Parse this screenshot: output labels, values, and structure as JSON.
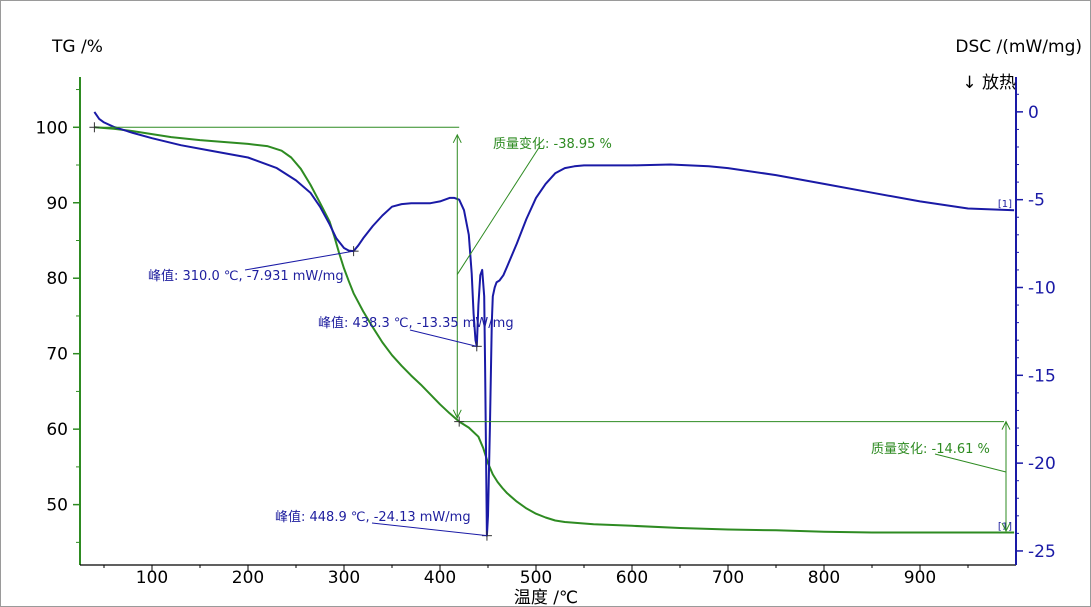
{
  "chart_data": {
    "type": "line",
    "title": "",
    "xlabel": "温度 /℃",
    "ylabel_left": "TG /%",
    "ylabel_right": "DSC /(mW/mg)",
    "exo_label": "↓ 放热",
    "xlim": [
      25,
      1000
    ],
    "ylim_left": [
      42,
      106
    ],
    "ylim_right": [
      -25.8,
      1.7
    ],
    "x_ticks": [
      100,
      200,
      300,
      400,
      500,
      600,
      700,
      800,
      900
    ],
    "y_ticks_left": [
      50,
      60,
      70,
      80,
      90,
      100
    ],
    "y_ticks_right": [
      0,
      -5,
      -10,
      -15,
      -20,
      -25
    ],
    "grid": false,
    "legend": "none",
    "series": [
      {
        "axis": "left",
        "color": "#2e8b22",
        "label": "[1]",
        "x": [
          40,
          60,
          80,
          100,
          120,
          150,
          180,
          200,
          220,
          235,
          245,
          255,
          265,
          275,
          285,
          290,
          295,
          300,
          305,
          310,
          320,
          330,
          340,
          350,
          360,
          370,
          380,
          390,
          400,
          410,
          420,
          430,
          440,
          445,
          450,
          455,
          460,
          465,
          470,
          480,
          490,
          500,
          510,
          520,
          530,
          540,
          560,
          600,
          650,
          700,
          750,
          800,
          850,
          900,
          950,
          998
        ],
        "y": [
          100,
          99.8,
          99.5,
          99.1,
          98.7,
          98.3,
          98.0,
          97.8,
          97.5,
          96.9,
          96.0,
          94.5,
          92.4,
          90.0,
          87.5,
          85.5,
          83.3,
          81.3,
          79.6,
          78.0,
          75.6,
          73.5,
          71.5,
          69.8,
          68.4,
          67.1,
          65.9,
          64.6,
          63.3,
          62.1,
          61.0,
          60.2,
          59.0,
          57.5,
          55.5,
          54.0,
          53.0,
          52.2,
          51.5,
          50.4,
          49.5,
          48.8,
          48.3,
          47.9,
          47.7,
          47.6,
          47.4,
          47.2,
          46.9,
          46.7,
          46.6,
          46.4,
          46.3,
          46.3,
          46.3,
          46.3
        ]
      },
      {
        "axis": "right",
        "color": "#1a1aa6",
        "label": "[1]",
        "x": [
          40,
          45,
          50,
          60,
          80,
          100,
          130,
          160,
          200,
          230,
          250,
          265,
          275,
          285,
          292,
          300,
          305,
          310,
          315,
          320,
          330,
          340,
          350,
          360,
          370,
          380,
          390,
          400,
          410,
          415,
          420,
          425,
          430,
          433,
          435,
          437,
          438.3,
          440,
          442,
          444,
          446,
          447,
          448.9,
          450,
          452,
          454,
          455,
          457,
          459,
          462,
          466,
          470,
          480,
          490,
          500,
          510,
          520,
          530,
          540,
          550,
          570,
          600,
          640,
          680,
          700,
          750,
          800,
          850,
          900,
          950,
          998
        ],
        "y": [
          0,
          -0.4,
          -0.6,
          -0.85,
          -1.2,
          -1.5,
          -1.9,
          -2.2,
          -2.6,
          -3.2,
          -3.9,
          -4.6,
          -5.4,
          -6.4,
          -7.2,
          -7.75,
          -7.9,
          -7.93,
          -7.6,
          -7.2,
          -6.5,
          -5.9,
          -5.4,
          -5.25,
          -5.2,
          -5.2,
          -5.2,
          -5.1,
          -4.9,
          -4.9,
          -5.0,
          -5.6,
          -7.0,
          -9.2,
          -11.5,
          -13.0,
          -13.35,
          -11.0,
          -9.3,
          -9.0,
          -10.5,
          -14.5,
          -24.13,
          -23.0,
          -18.0,
          -12.0,
          -10.5,
          -10.0,
          -9.7,
          -9.6,
          -9.3,
          -8.8,
          -7.5,
          -6.1,
          -4.9,
          -4.1,
          -3.5,
          -3.2,
          -3.1,
          -3.05,
          -3.05,
          -3.05,
          -3.0,
          -3.1,
          -3.2,
          -3.6,
          -4.1,
          -4.6,
          -5.1,
          -5.5,
          -5.6
        ]
      }
    ],
    "annotations": {
      "peak1": "峰值: 310.0 ℃, -7.931 mW/mg",
      "peak2": "峰值: 438.3 ℃, -13.35 mW/mg",
      "peak3": "峰值: 448.9 ℃, -24.13 mW/mg",
      "mass1": "质量变化: -38.95 %",
      "mass2": "质量变化: -14.61 %"
    },
    "tg_markers": {
      "start": [
        40,
        100
      ],
      "mid": [
        420,
        61
      ],
      "end": [
        998,
        46.3
      ]
    }
  }
}
